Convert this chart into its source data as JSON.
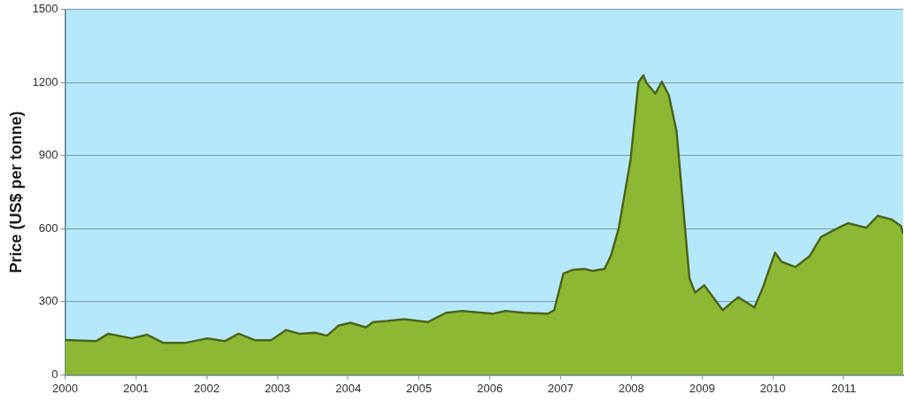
{
  "chart_data": {
    "type": "area",
    "ylabel": "Price (US$ per tonne)",
    "x": [
      2000.0,
      2000.44,
      2000.61,
      2000.94,
      2001.16,
      2001.39,
      2001.69,
      2002.01,
      2002.26,
      2002.45,
      2002.69,
      2002.91,
      2003.12,
      2003.31,
      2003.53,
      2003.7,
      2003.86,
      2004.03,
      2004.25,
      2004.35,
      2004.55,
      2004.79,
      2005.13,
      2005.38,
      2005.61,
      2006.04,
      2006.22,
      2006.48,
      2006.82,
      2006.91,
      2007.04,
      2007.17,
      2007.34,
      2007.45,
      2007.62,
      2007.71,
      2007.82,
      2007.91,
      2007.99,
      2008.1,
      2008.17,
      2008.21,
      2008.34,
      2008.43,
      2008.53,
      2008.64,
      2008.73,
      2008.82,
      2008.9,
      2009.03,
      2009.29,
      2009.51,
      2009.74,
      2009.86,
      2010.03,
      2010.12,
      2010.32,
      2010.52,
      2010.68,
      2010.9,
      2011.06,
      2011.32,
      2011.48,
      2011.68,
      2011.81,
      2011.84
    ],
    "series": [
      {
        "color": "#8cb833",
        "values": [
          143,
          139,
          169,
          150,
          165,
          131,
          131,
          150,
          139,
          169,
          142,
          142,
          184,
          169,
          173,
          161,
          202,
          214,
          195,
          217,
          221,
          229,
          217,
          255,
          262,
          251,
          262,
          255,
          251,
          266,
          416,
          431,
          435,
          427,
          435,
          488,
          600,
          750,
          885,
          1200,
          1230,
          1200,
          1155,
          1204,
          1148,
          998,
          698,
          398,
          338,
          368,
          266,
          319,
          277,
          360,
          502,
          465,
          443,
          488,
          566,
          600,
          623,
          604,
          653,
          638,
          611,
          581
        ]
      }
    ],
    "xlim": [
      2000,
      2011.84
    ],
    "xticks": [
      2000,
      2001,
      2002,
      2003,
      2004,
      2005,
      2006,
      2007,
      2008,
      2009,
      2010,
      2011
    ],
    "ylim": [
      0,
      1500
    ],
    "yticks": [
      0,
      300,
      600,
      900,
      1200,
      1500
    ],
    "grid": "y",
    "legend": false,
    "marker": "none",
    "line_style": "solid"
  }
}
